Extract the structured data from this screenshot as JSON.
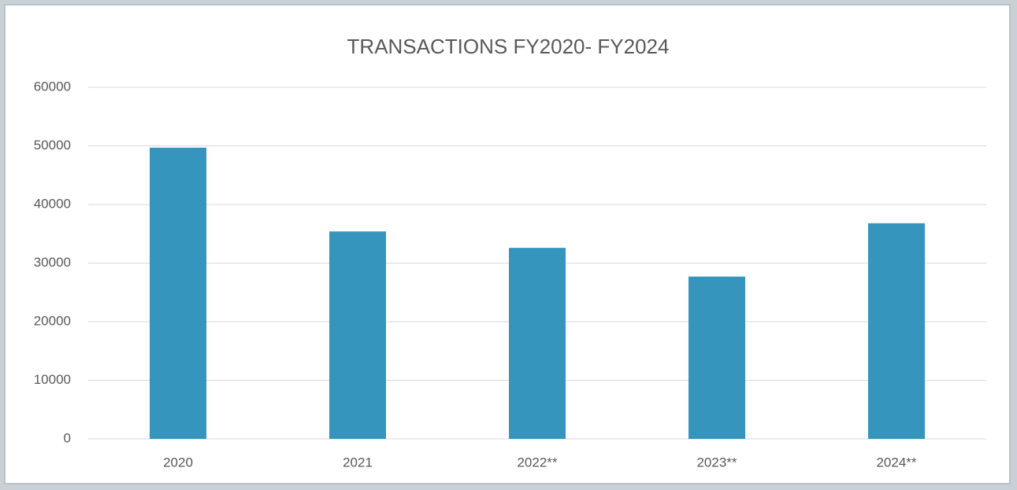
{
  "chart_data": {
    "type": "bar",
    "title": "TRANSACTIONS FY2020- FY2024",
    "categories": [
      "2020",
      "2021",
      "2022**",
      "2023**",
      "2024**"
    ],
    "values": [
      49700,
      35400,
      32600,
      27700,
      36800
    ],
    "color": "#3595bd",
    "ylim": [
      0,
      60000
    ],
    "yticks": [
      0,
      10000,
      20000,
      30000,
      40000,
      50000,
      60000
    ],
    "grid": true
  }
}
